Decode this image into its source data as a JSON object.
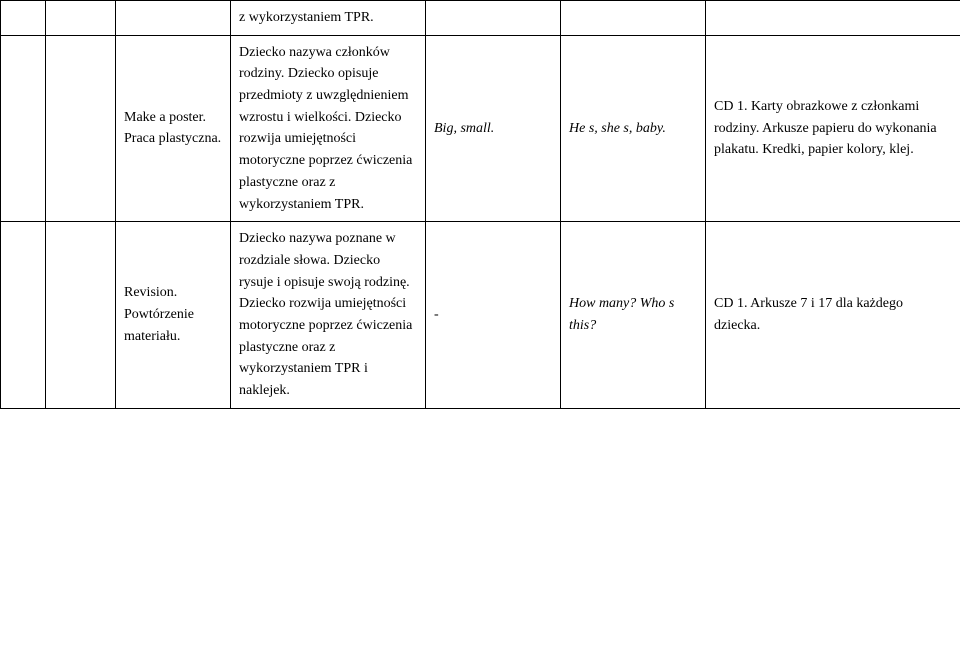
{
  "rows": [
    {
      "c1": "",
      "c2": "",
      "c3": "",
      "c4": "z wykorzystaniem TPR.",
      "c5": "",
      "c6": "",
      "c7": ""
    },
    {
      "c1": "",
      "c2": "",
      "c3": "Make a poster.\nPraca plastyczna.",
      "c4": "Dziecko nazywa członków rodziny. Dziecko opisuje przedmioty z uwzględnieniem wzrostu i wielkości. Dziecko rozwija umiejętności motoryczne poprzez ćwiczenia plastyczne oraz z wykorzystaniem TPR.",
      "c5": "Big, small.",
      "c6": "He s, she s, baby.",
      "c7": "CD 1. Karty obrazkowe z członkami rodziny. Arkusze papieru do wykonania plakatu. Kredki, papier kolory, klej."
    },
    {
      "c1": "",
      "c2": "",
      "c3": "Revision.\nPowtórzenie materiału.",
      "c4": "Dziecko nazywa poznane w rozdziale słowa. Dziecko rysuje i opisuje swoją rodzinę. Dziecko rozwija umiejętności motoryczne poprzez ćwiczenia plastyczne oraz z wykorzystaniem TPR i naklejek.",
      "c5": "-",
      "c6": "How many? Who s this?",
      "c7": "CD 1. Arkusze 7 i 17 dla każdego dziecka."
    }
  ]
}
